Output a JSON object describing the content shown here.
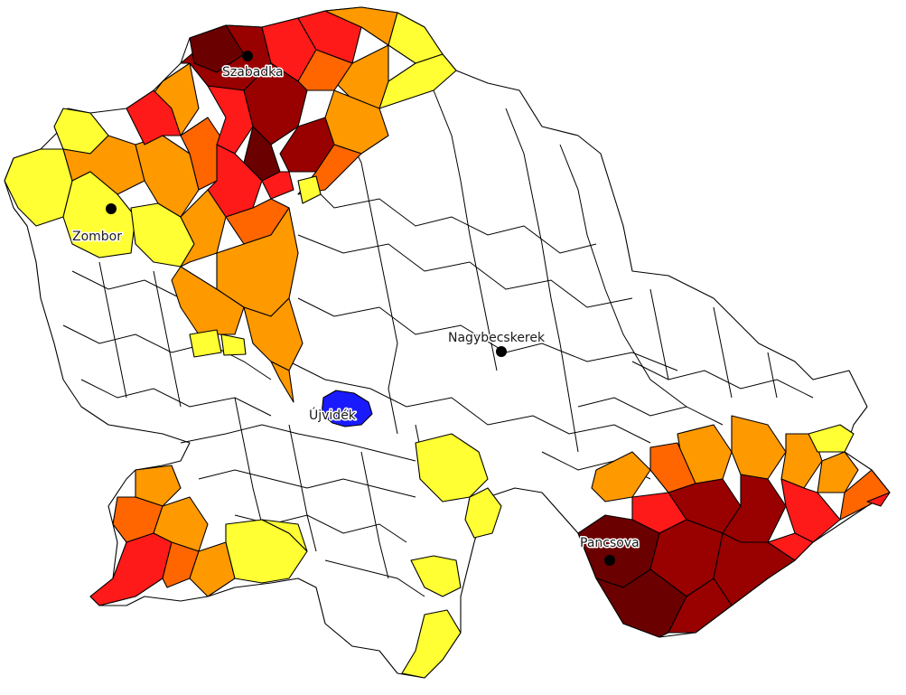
{
  "map": {
    "colors": {
      "outline": "#000000",
      "background": "#ffffff",
      "class_1_yellow": "#ffff33",
      "class_2_orange": "#ff9900",
      "class_3_dark_orange": "#ff6600",
      "class_4_red": "#ff1a1a",
      "class_5_dark_red": "#990000",
      "class_6_very_dark_red": "#6b0000",
      "highlight_blue": "#1a1aff",
      "city_marker": "#000000"
    },
    "cities": [
      {
        "name": "Szabadka"
      },
      {
        "name": "Zombor"
      },
      {
        "name": "Nagybecskerek"
      },
      {
        "name": "Újvidék"
      },
      {
        "name": "Pancsova"
      }
    ]
  }
}
